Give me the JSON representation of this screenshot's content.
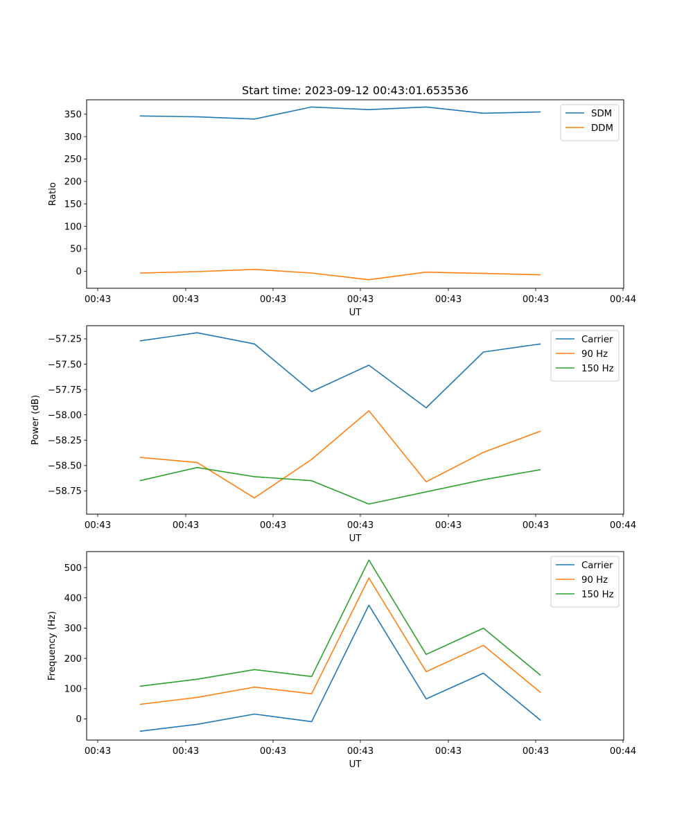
{
  "chart_data": [
    {
      "type": "line",
      "title": "Start time: 2023-09-12 00:43:01.653536",
      "xlabel": "UT",
      "ylabel": "Ratio",
      "x_tick_labels": [
        "00:43",
        "00:43",
        "00:43",
        "00:43",
        "00:43",
        "00:43",
        "00:44"
      ],
      "y_ticks": [
        0,
        50,
        100,
        150,
        200,
        250,
        300,
        350
      ],
      "y_tick_labels": [
        "0",
        "50",
        "100",
        "150",
        "200",
        "250",
        "300",
        "350"
      ],
      "ylim": [
        -38,
        382
      ],
      "x": [
        1,
        2,
        3,
        4,
        5,
        6,
        7,
        8
      ],
      "series": [
        {
          "name": "SDM",
          "color": "#1f77b4",
          "values": [
            346,
            344,
            339,
            366,
            360,
            366,
            352,
            355
          ]
        },
        {
          "name": "DDM",
          "color": "#ff7f0e",
          "values": [
            -4,
            -1,
            4,
            -4,
            -19,
            -2,
            -5,
            -8
          ]
        }
      ],
      "legend": "upper-right",
      "grid": false
    },
    {
      "type": "line",
      "title": "",
      "xlabel": "UT",
      "ylabel": "Power (dB)",
      "x_tick_labels": [
        "00:43",
        "00:43",
        "00:43",
        "00:43",
        "00:43",
        "00:43",
        "00:44"
      ],
      "y_ticks": [
        -58.75,
        -58.5,
        -58.25,
        -58.0,
        -57.75,
        -57.5,
        -57.25
      ],
      "y_tick_labels": [
        "−58.75",
        "−58.50",
        "−58.25",
        "−58.00",
        "−57.75",
        "−57.50",
        "−57.25"
      ],
      "ylim": [
        -58.98,
        -57.12
      ],
      "x": [
        1,
        2,
        3,
        4,
        5,
        6,
        7,
        8
      ],
      "series": [
        {
          "name": "Carrier",
          "color": "#1f77b4",
          "values": [
            -57.27,
            -57.19,
            -57.3,
            -57.77,
            -57.51,
            -57.93,
            -57.38,
            -57.3
          ]
        },
        {
          "name": "90 Hz",
          "color": "#ff7f0e",
          "values": [
            -58.42,
            -58.47,
            -58.82,
            -58.44,
            -57.96,
            -58.66,
            -58.37,
            -58.16
          ]
        },
        {
          "name": "150 Hz",
          "color": "#2ca02c",
          "values": [
            -58.65,
            -58.52,
            -58.61,
            -58.65,
            -58.88,
            -58.76,
            -58.64,
            -58.54
          ]
        }
      ],
      "legend": "upper-right",
      "grid": false
    },
    {
      "type": "line",
      "title": "",
      "xlabel": "UT",
      "ylabel": "Frequency (Hz)",
      "x_tick_labels": [
        "00:43",
        "00:43",
        "00:43",
        "00:43",
        "00:43",
        "00:43",
        "00:44"
      ],
      "y_ticks": [
        0,
        100,
        200,
        300,
        400,
        500
      ],
      "y_tick_labels": [
        "0",
        "100",
        "200",
        "300",
        "400",
        "500"
      ],
      "ylim": [
        -70,
        553
      ],
      "x": [
        1,
        2,
        3,
        4,
        5,
        6,
        7,
        8
      ],
      "series": [
        {
          "name": "Carrier",
          "color": "#1f77b4",
          "values": [
            -41,
            -18,
            16,
            -9,
            376,
            66,
            151,
            -5
          ]
        },
        {
          "name": "90 Hz",
          "color": "#ff7f0e",
          "values": [
            48,
            71,
            105,
            83,
            466,
            156,
            243,
            87
          ]
        },
        {
          "name": "150 Hz",
          "color": "#2ca02c",
          "values": [
            108,
            131,
            163,
            140,
            525,
            213,
            300,
            144
          ]
        }
      ],
      "legend": "upper-right",
      "grid": false
    }
  ]
}
